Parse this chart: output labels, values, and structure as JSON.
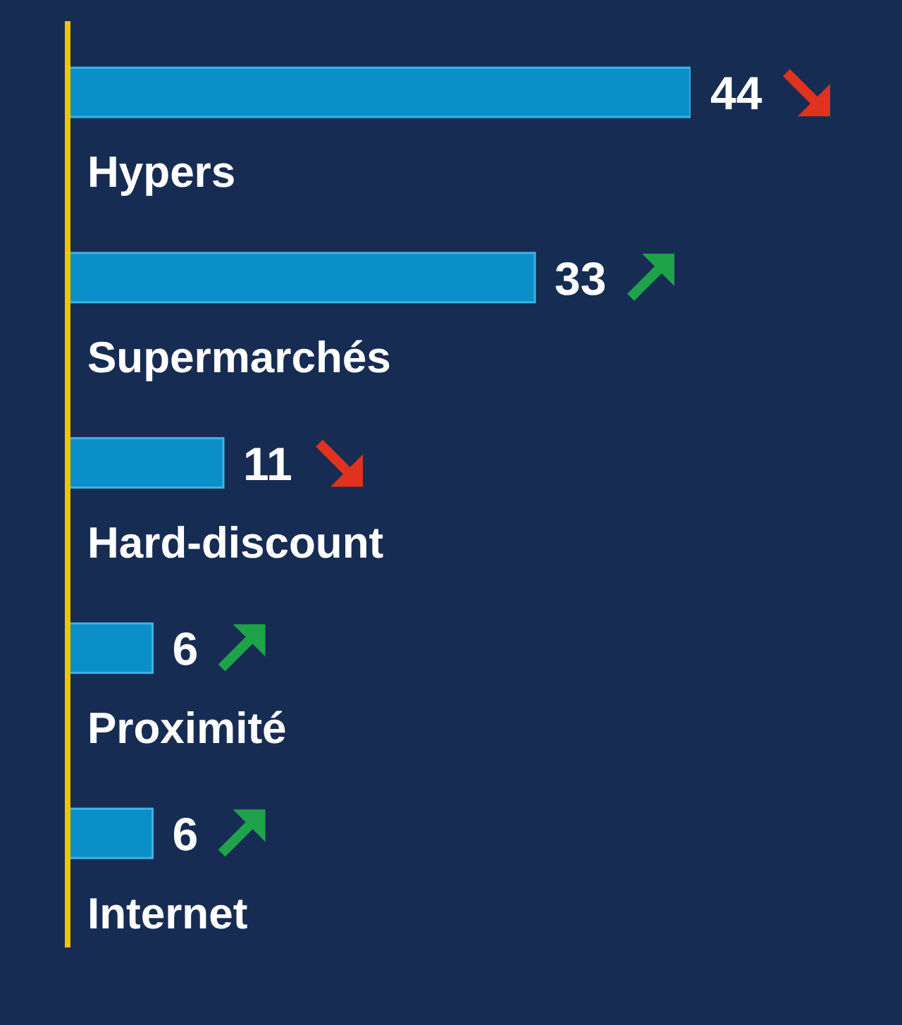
{
  "chart_data": {
    "type": "bar",
    "orientation": "horizontal",
    "categories": [
      "Hypers",
      "Supermarchés",
      "Hard-discount",
      "Proximité",
      "Internet"
    ],
    "values": [
      44,
      33,
      11,
      6,
      6
    ],
    "color": "#0b8fc8",
    "data_labels": true,
    "legend": false,
    "grid": false
  }
}
